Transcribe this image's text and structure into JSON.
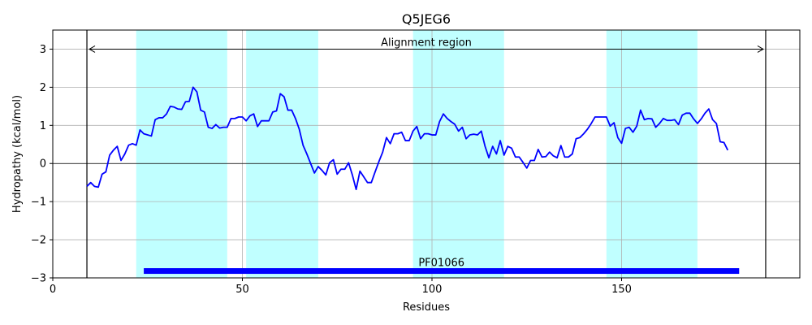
{
  "chart_data": {
    "type": "line",
    "title": "Q5JEG6",
    "xlabel": "Residues",
    "ylabel": "Hydropathy (kcal/mol)",
    "xlim": [
      0,
      197
    ],
    "ylim": [
      -3,
      3.5
    ],
    "xticks": [
      0,
      50,
      100,
      150
    ],
    "yticks": [
      -3,
      -2,
      -1,
      0,
      1,
      2,
      3
    ],
    "grid": true,
    "colors": {
      "line": "#0000ff",
      "region": "#c0ffff",
      "domain_bar": "#0000ff",
      "boundary": "#000000",
      "grid": "#b0b0b0"
    },
    "series": [
      {
        "x": [
          9,
          10,
          11,
          12,
          13,
          14,
          15,
          16,
          17,
          18,
          19,
          20,
          21,
          22,
          23,
          24,
          25,
          26,
          27,
          28,
          29,
          30,
          31,
          32,
          33,
          34,
          35,
          36,
          37,
          38,
          39,
          40,
          41,
          42,
          43,
          44,
          45,
          46,
          47,
          48,
          49,
          50,
          51,
          52,
          53,
          54,
          55,
          56,
          57,
          58,
          59,
          60,
          61,
          62,
          63,
          64,
          65,
          66,
          67,
          68,
          69,
          70,
          71,
          72,
          73,
          74,
          75,
          76,
          77,
          78,
          79,
          80,
          81,
          82,
          83,
          84,
          85,
          86,
          87,
          88,
          89,
          90,
          91,
          92,
          93,
          94,
          95,
          96,
          97,
          98,
          99,
          100,
          101,
          102,
          103,
          104,
          105,
          106,
          107,
          108,
          109,
          110,
          111,
          112,
          113,
          114,
          115,
          116,
          117,
          118,
          119,
          120,
          121,
          122,
          123,
          124,
          125,
          126,
          127,
          128,
          129,
          130,
          131,
          132,
          133,
          134,
          135,
          136,
          137,
          138,
          139,
          140,
          141,
          142,
          143,
          144,
          145,
          146,
          147,
          148,
          149,
          150,
          151,
          152,
          153,
          154,
          155,
          156,
          157,
          158,
          159,
          160,
          161,
          162,
          163,
          164,
          165,
          166,
          167,
          168,
          169,
          170,
          171,
          172,
          173,
          174,
          175,
          176,
          177,
          178
        ],
        "values": [
          -0.6,
          -0.5,
          -0.6,
          -0.62,
          -0.28,
          -0.22,
          0.22,
          0.35,
          0.45,
          0.08,
          0.25,
          0.48,
          0.52,
          0.48,
          0.88,
          0.78,
          0.75,
          0.72,
          1.15,
          1.2,
          1.2,
          1.3,
          1.5,
          1.48,
          1.43,
          1.42,
          1.62,
          1.63,
          2.0,
          1.88,
          1.4,
          1.35,
          0.95,
          0.92,
          1.02,
          0.93,
          0.95,
          0.95,
          1.18,
          1.18,
          1.22,
          1.22,
          1.12,
          1.25,
          1.3,
          0.97,
          1.12,
          1.12,
          1.12,
          1.35,
          1.38,
          1.83,
          1.75,
          1.4,
          1.4,
          1.18,
          0.9,
          0.48,
          0.25,
          0.0,
          -0.25,
          -0.08,
          -0.18,
          -0.3,
          0.02,
          0.1,
          -0.28,
          -0.15,
          -0.15,
          0.02,
          -0.3,
          -0.68,
          -0.2,
          -0.35,
          -0.5,
          -0.5,
          -0.22,
          0.05,
          0.3,
          0.68,
          0.52,
          0.78,
          0.78,
          0.82,
          0.6,
          0.6,
          0.85,
          0.97,
          0.65,
          0.78,
          0.78,
          0.75,
          0.75,
          1.1,
          1.3,
          1.18,
          1.1,
          1.03,
          0.85,
          0.95,
          0.65,
          0.75,
          0.77,
          0.75,
          0.85,
          0.45,
          0.15,
          0.45,
          0.25,
          0.6,
          0.22,
          0.45,
          0.4,
          0.17,
          0.17,
          0.03,
          -0.12,
          0.08,
          0.08,
          0.37,
          0.17,
          0.18,
          0.3,
          0.2,
          0.15,
          0.47,
          0.17,
          0.17,
          0.25,
          0.65,
          0.68,
          0.78,
          0.9,
          1.05,
          1.22,
          1.22,
          1.22,
          1.22,
          0.98,
          1.07,
          0.68,
          0.53,
          0.92,
          0.95,
          0.82,
          0.98,
          1.4,
          1.15,
          1.18,
          1.17,
          0.95,
          1.05,
          1.18,
          1.13,
          1.13,
          1.15,
          1.02,
          1.27,
          1.32,
          1.32,
          1.17,
          1.05,
          1.17,
          1.32,
          1.43,
          1.15,
          1.05,
          0.57,
          0.55,
          0.35
        ]
      }
    ],
    "highlight_regions": [
      [
        22,
        46
      ],
      [
        51,
        70
      ],
      [
        95,
        119
      ],
      [
        146,
        170
      ]
    ],
    "alignment_region": {
      "label": "Alignment region",
      "start": 9,
      "end": 188,
      "y": 3.0
    },
    "boundary_lines": [
      9,
      188
    ],
    "domain": {
      "label": "PF01066",
      "start": 24,
      "end": 181,
      "y": -2.82
    }
  }
}
